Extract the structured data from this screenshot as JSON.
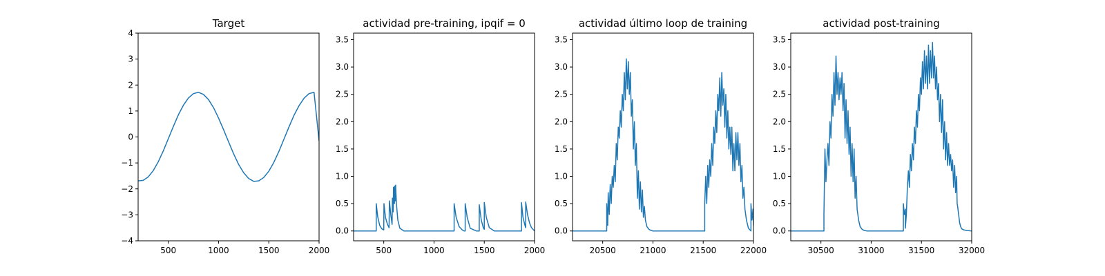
{
  "colors": {
    "line": "#1f77b4"
  },
  "chart_data": [
    {
      "type": "line",
      "title": "Target",
      "xlim": [
        200,
        2000
      ],
      "ylim": [
        -4,
        4
      ],
      "xticks": [
        500,
        1000,
        1500,
        2000
      ],
      "yticks": [
        -4,
        -3,
        -2,
        -1,
        0,
        1,
        2,
        3,
        4
      ],
      "xtick_labels": [
        "500",
        "1000",
        "1500",
        "2000"
      ],
      "ytick_labels": [
        "−4",
        "−3",
        "−2",
        "−1",
        "0",
        "1",
        "2",
        "3",
        "4"
      ],
      "series": [
        {
          "x": [
            200,
            250,
            300,
            350,
            400,
            450,
            500,
            550,
            600,
            650,
            700,
            750,
            800,
            850,
            900,
            950,
            1000,
            1050,
            1100,
            1150,
            1200,
            1250,
            1300,
            1350,
            1400,
            1450,
            1500,
            1550,
            1600,
            1650,
            1700,
            1750,
            1800,
            1850,
            1900,
            1950,
            2000
          ],
          "y": [
            -1.69,
            -1.67,
            -1.54,
            -1.3,
            -0.96,
            -0.54,
            -0.07,
            0.4,
            0.85,
            1.22,
            1.5,
            1.67,
            1.72,
            1.64,
            1.44,
            1.13,
            0.73,
            0.28,
            -0.19,
            -0.65,
            -1.06,
            -1.38,
            -1.6,
            -1.71,
            -1.69,
            -1.56,
            -1.32,
            -0.98,
            -0.56,
            -0.09,
            0.38,
            0.83,
            1.2,
            1.49,
            1.67,
            1.72,
            -0.15
          ]
        }
      ]
    },
    {
      "type": "line",
      "title": "actividad pre-training, ipqif = 0",
      "xlim": [
        200,
        2000
      ],
      "ylim": [
        -0.18,
        3.62
      ],
      "xticks": [
        500,
        1000,
        1500,
        2000
      ],
      "yticks": [
        0.0,
        0.5,
        1.0,
        1.5,
        2.0,
        2.5,
        3.0,
        3.5
      ],
      "xtick_labels": [
        "500",
        "1000",
        "1500",
        "2000"
      ],
      "ytick_labels": [
        "0.0",
        "0.5",
        "1.0",
        "1.5",
        "2.0",
        "2.5",
        "3.0",
        "3.5"
      ],
      "series": [
        {
          "x": [
            200,
            425,
            425,
            440,
            460,
            480,
            500,
            502,
            517,
            537,
            553,
            556,
            570,
            583,
            586,
            594,
            597,
            606,
            608,
            616,
            618,
            626,
            640,
            660,
            700,
            1200,
            1200,
            1220,
            1250,
            1280,
            1300,
            1310,
            1310,
            1330,
            1360,
            1420,
            1450,
            1450,
            1470,
            1490,
            1500,
            1500,
            1520,
            1550,
            1600,
            1870,
            1870,
            1885,
            1905,
            1912,
            1912,
            1930,
            1950,
            1960,
            1970,
            1990,
            2000
          ],
          "y": [
            0.0,
            0.0,
            0.5,
            0.26,
            0.1,
            0.04,
            0.02,
            0.5,
            0.25,
            0.12,
            0.06,
            0.55,
            0.3,
            0.12,
            0.6,
            0.35,
            0.8,
            0.5,
            0.82,
            0.55,
            0.84,
            0.5,
            0.2,
            0.05,
            0.0,
            0.0,
            0.5,
            0.25,
            0.08,
            0.02,
            0.0,
            0.0,
            0.5,
            0.25,
            0.05,
            0.0,
            0.0,
            0.48,
            0.2,
            0.06,
            0.03,
            0.52,
            0.25,
            0.06,
            0.0,
            0.0,
            0.52,
            0.25,
            0.1,
            0.06,
            0.53,
            0.3,
            0.15,
            0.1,
            0.06,
            0.02,
            0.0
          ]
        }
      ]
    },
    {
      "type": "line",
      "title": "actividad último loop de training",
      "xlim": [
        20200,
        22000
      ],
      "ylim": [
        -0.18,
        3.62
      ],
      "xticks": [
        20500,
        21000,
        21500,
        22000
      ],
      "yticks": [
        0.0,
        0.5,
        1.0,
        1.5,
        2.0,
        2.5,
        3.0,
        3.5
      ],
      "xtick_labels": [
        "20500",
        "21000",
        "21500",
        "22000"
      ],
      "ytick_labels": [
        "0.0",
        "0.5",
        "1.0",
        "1.5",
        "2.0",
        "2.5",
        "3.0",
        "3.5"
      ],
      "series": [
        {
          "x": [
            20200,
            20540,
            20540,
            20550,
            20555,
            20565,
            20575,
            20585,
            20595,
            20605,
            20615,
            20625,
            20635,
            20645,
            20655,
            20665,
            20675,
            20685,
            20695,
            20705,
            20715,
            20725,
            20735,
            20745,
            20755,
            20765,
            20775,
            20785,
            20795,
            20805,
            20815,
            20825,
            20835,
            20845,
            20855,
            20865,
            20875,
            20885,
            20895,
            20905,
            20915,
            20925,
            20940,
            20960,
            20980,
            21000,
            21100,
            21500,
            21515,
            21515,
            21525,
            21535,
            21545,
            21555,
            21565,
            21575,
            21585,
            21595,
            21605,
            21615,
            21625,
            21635,
            21645,
            21655,
            21665,
            21675,
            21685,
            21695,
            21705,
            21715,
            21725,
            21735,
            21745,
            21755,
            21765,
            21775,
            21785,
            21795,
            21805,
            21815,
            21825,
            21835,
            21845,
            21855,
            21865,
            21875,
            21885,
            21895,
            21905,
            21915,
            21930,
            21950,
            21965,
            21975,
            21975,
            21985,
            21995,
            22000
          ],
          "y": [
            0.0,
            0.0,
            0.5,
            0.1,
            0.7,
            0.3,
            0.85,
            0.5,
            1.0,
            0.8,
            1.2,
            0.9,
            1.6,
            1.3,
            1.9,
            1.7,
            2.2,
            1.9,
            2.5,
            2.2,
            2.9,
            2.4,
            3.15,
            2.6,
            3.1,
            2.5,
            2.9,
            2.1,
            2.4,
            1.5,
            2.0,
            1.2,
            1.6,
            0.6,
            1.1,
            0.4,
            0.9,
            0.35,
            0.75,
            0.25,
            0.45,
            0.2,
            0.08,
            0.03,
            0.01,
            0.0,
            0.0,
            0.0,
            0.0,
            0.5,
            1.0,
            0.5,
            1.2,
            0.8,
            1.3,
            1.0,
            1.6,
            1.2,
            1.9,
            1.6,
            2.2,
            1.8,
            2.5,
            2.2,
            2.8,
            2.1,
            2.9,
            2.3,
            2.6,
            1.9,
            2.5,
            1.7,
            2.2,
            1.5,
            1.9,
            1.4,
            1.9,
            1.1,
            1.6,
            1.1,
            1.8,
            1.3,
            1.8,
            1.2,
            1.6,
            0.9,
            1.2,
            0.6,
            0.8,
            0.4,
            0.2,
            0.05,
            0.02,
            0.0,
            0.5,
            0.2,
            0.4,
            0.1
          ]
        }
      ]
    },
    {
      "type": "line",
      "title": "actividad post-training",
      "xlim": [
        30200,
        32000
      ],
      "ylim": [
        -0.18,
        3.62
      ],
      "xticks": [
        30500,
        31000,
        31500,
        32000
      ],
      "yticks": [
        0.0,
        0.5,
        1.0,
        1.5,
        2.0,
        2.5,
        3.0,
        3.5
      ],
      "xtick_labels": [
        "30500",
        "31000",
        "31500",
        "32000"
      ],
      "ytick_labels": [
        "0.0",
        "0.5",
        "1.0",
        "1.5",
        "2.0",
        "2.5",
        "3.0",
        "3.5"
      ],
      "series": [
        {
          "x": [
            30200,
            30530,
            30530,
            30540,
            30550,
            30560,
            30570,
            30580,
            30590,
            30600,
            30610,
            30620,
            30630,
            30640,
            30650,
            30660,
            30670,
            30680,
            30690,
            30700,
            30710,
            30720,
            30730,
            30740,
            30750,
            30760,
            30770,
            30780,
            30790,
            30800,
            30810,
            30820,
            30830,
            30840,
            30850,
            30860,
            30875,
            30890,
            30910,
            30930,
            30960,
            31000,
            31100,
            31320,
            31320,
            31330,
            31340,
            31340,
            31350,
            31360,
            31370,
            31380,
            31390,
            31400,
            31410,
            31420,
            31430,
            31440,
            31450,
            31460,
            31470,
            31480,
            31490,
            31500,
            31510,
            31520,
            31530,
            31540,
            31550,
            31560,
            31570,
            31580,
            31590,
            31600,
            31610,
            31620,
            31630,
            31640,
            31650,
            31660,
            31670,
            31680,
            31690,
            31700,
            31710,
            31720,
            31730,
            31740,
            31750,
            31760,
            31770,
            31780,
            31790,
            31800,
            31810,
            31820,
            31830,
            31840,
            31850,
            31855,
            31860,
            31870,
            31880,
            31890,
            31900,
            31920,
            31950,
            32000
          ],
          "y": [
            0.0,
            0.0,
            0.3,
            1.5,
            0.9,
            1.3,
            1.6,
            1.2,
            2.0,
            1.7,
            2.5,
            2.1,
            2.9,
            2.3,
            3.2,
            2.5,
            2.9,
            2.4,
            2.8,
            2.5,
            2.9,
            2.2,
            2.7,
            1.7,
            2.4,
            1.6,
            2.2,
            1.4,
            1.9,
            1.0,
            1.6,
            0.9,
            1.5,
            0.6,
            1.0,
            0.4,
            0.2,
            0.08,
            0.03,
            0.01,
            0.0,
            0.0,
            0.0,
            0.0,
            0.5,
            0.3,
            0.4,
            0.05,
            0.3,
            0.8,
            1.1,
            0.8,
            1.4,
            1.1,
            1.6,
            1.3,
            1.9,
            1.6,
            2.2,
            1.9,
            2.5,
            2.2,
            2.8,
            2.5,
            3.1,
            2.6,
            3.3,
            2.7,
            3.2,
            2.6,
            3.4,
            2.7,
            3.3,
            2.8,
            3.45,
            2.8,
            3.2,
            2.6,
            3.0,
            2.4,
            2.7,
            2.0,
            2.5,
            1.8,
            2.4,
            1.5,
            2.0,
            1.3,
            1.8,
            1.2,
            1.6,
            1.2,
            1.4,
            1.1,
            1.3,
            0.8,
            1.2,
            0.7,
            1.0,
            0.5,
            0.45,
            0.3,
            0.15,
            0.08,
            0.04,
            0.02,
            0.01,
            0.0
          ]
        }
      ]
    }
  ]
}
